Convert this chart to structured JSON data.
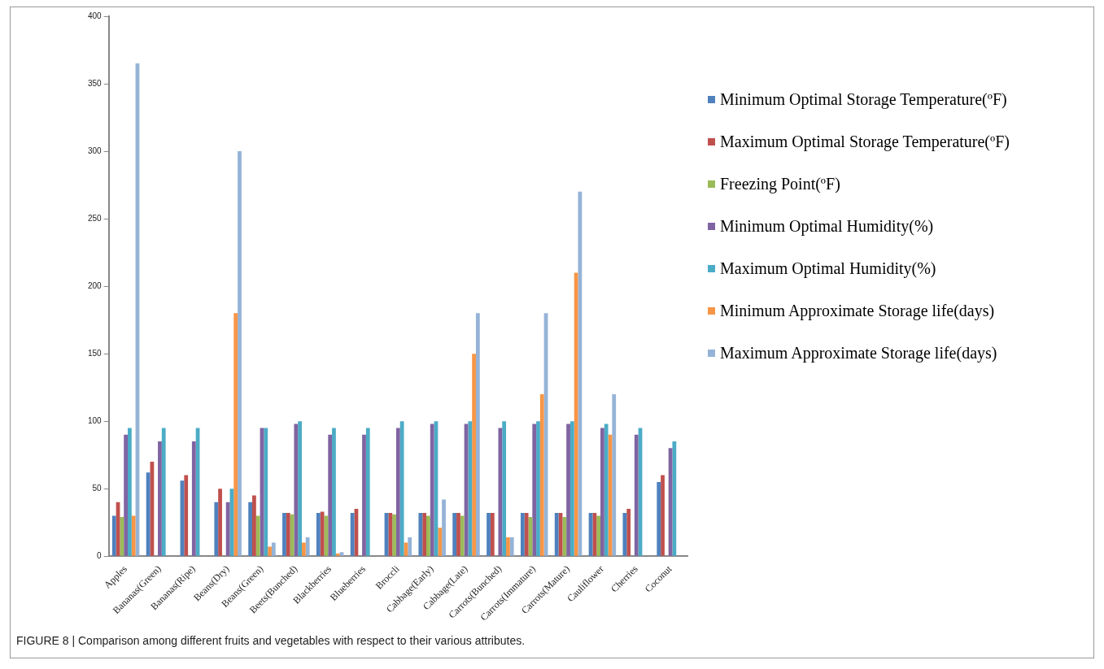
{
  "chart_data": {
    "type": "bar",
    "categories": [
      "Apples",
      "Bananas(Green)",
      "Bananas(Ripe)",
      "Beans(Dry)",
      "Beans(Green)",
      "Beets(Bunched)",
      "Blackberries",
      "Blueberries",
      "Broccli",
      "Cabbage(Early)",
      "Cabbage(Late)",
      "Carrots(Bunched)",
      "Carrots(Immature)",
      "Carrots(Mature)",
      "Cauliflower",
      "Cherries",
      "Coconut"
    ],
    "series": [
      {
        "name": "Minimum Optimal Storage Temperature(ºF)",
        "color": "#4f81bd",
        "values": [
          30,
          62,
          56,
          40,
          40,
          32,
          32,
          32,
          32,
          32,
          32,
          32,
          32,
          32,
          32,
          32,
          55
        ]
      },
      {
        "name": "Maximum Optimal Storage Temperature(ºF)",
        "color": "#c0504d",
        "values": [
          40,
          70,
          60,
          50,
          45,
          32,
          33,
          35,
          32,
          32,
          32,
          32,
          32,
          32,
          32,
          35,
          60
        ]
      },
      {
        "name": "Freezing Point(ºF)",
        "color": "#9bbb59",
        "values": [
          29,
          null,
          null,
          null,
          30,
          31,
          30,
          null,
          31,
          30,
          30,
          null,
          29,
          29,
          30,
          null,
          null
        ]
      },
      {
        "name": "Minimum Optimal Humidity(%)",
        "color": "#8064a2",
        "values": [
          90,
          85,
          85,
          40,
          95,
          98,
          90,
          90,
          95,
          98,
          98,
          95,
          98,
          98,
          95,
          90,
          80
        ]
      },
      {
        "name": "Maximum Optimal Humidity(%)",
        "color": "#4bacc6",
        "values": [
          95,
          95,
          95,
          50,
          95,
          100,
          95,
          95,
          100,
          100,
          100,
          100,
          100,
          100,
          98,
          95,
          85
        ]
      },
      {
        "name": "Minimum Approximate Storage life(days)",
        "color": "#f79646",
        "values": [
          30,
          null,
          null,
          180,
          7,
          10,
          2,
          null,
          10,
          21,
          150,
          14,
          120,
          210,
          90,
          null,
          null
        ]
      },
      {
        "name": "Maximum Approximate Storage life(days)",
        "color": "#95b3d7",
        "values": [
          365,
          null,
          null,
          300,
          10,
          14,
          3,
          null,
          14,
          42,
          180,
          14,
          180,
          270,
          120,
          null,
          null
        ]
      }
    ],
    "ylim": [
      0,
      400
    ],
    "yticks": [
      0,
      50,
      100,
      150,
      200,
      250,
      300,
      350,
      400
    ],
    "grid": false,
    "legend": "right",
    "annotations": [
      "FIGURE 8 | Comparison among different fruits and vegetables with respect to their various attributes."
    ]
  }
}
